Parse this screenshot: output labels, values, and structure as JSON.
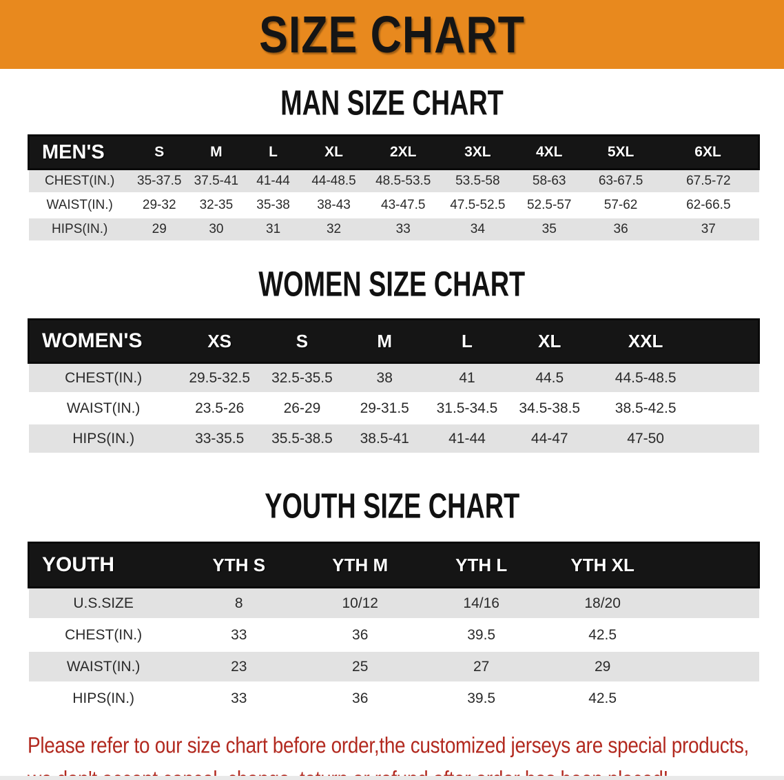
{
  "banner": {
    "title": "SIZE CHART"
  },
  "colors": {
    "banner_bg": "#e8891e",
    "header_bar": "#151515",
    "row_gray": "#e2e2e2",
    "footer_red": "#b2291f"
  },
  "sections": [
    {
      "heading": "MAN SIZE CHART",
      "header_label": "MEN'S",
      "columns": [
        "S",
        "M",
        "L",
        "XL",
        "2XL",
        "3XL",
        "4XL",
        "5XL",
        "6XL"
      ],
      "rows": [
        {
          "label": "CHEST(IN.)",
          "values": [
            "35-37.5",
            "37.5-41",
            "41-44",
            "44-48.5",
            "48.5-53.5",
            "53.5-58",
            "58-63",
            "63-67.5",
            "67.5-72"
          ]
        },
        {
          "label": "WAIST(IN.)",
          "values": [
            "29-32",
            "32-35",
            "35-38",
            "38-43",
            "43-47.5",
            "47.5-52.5",
            "52.5-57",
            "57-62",
            "62-66.5"
          ]
        },
        {
          "label": "HIPS(IN.)",
          "values": [
            "29",
            "30",
            "31",
            "32",
            "33",
            "34",
            "35",
            "36",
            "37"
          ]
        }
      ]
    },
    {
      "heading": "WOMEN SIZE CHART",
      "header_label": "WOMEN'S",
      "columns": [
        "XS",
        "S",
        "M",
        "L",
        "XL",
        "XXL"
      ],
      "rows": [
        {
          "label": "CHEST(IN.)",
          "values": [
            "29.5-32.5",
            "32.5-35.5",
            "38",
            "41",
            "44.5",
            "44.5-48.5"
          ]
        },
        {
          "label": "WAIST(IN.)",
          "values": [
            "23.5-26",
            "26-29",
            "29-31.5",
            "31.5-34.5",
            "34.5-38.5",
            "38.5-42.5"
          ]
        },
        {
          "label": "HIPS(IN.)",
          "values": [
            "33-35.5",
            "35.5-38.5",
            "38.5-41",
            "41-44",
            "44-47",
            "47-50"
          ]
        }
      ]
    },
    {
      "heading": "YOUTH SIZE CHART",
      "header_label": "YOUTH",
      "columns": [
        "YTH S",
        "YTH M",
        "YTH L",
        "YTH XL"
      ],
      "rows": [
        {
          "label": "U.S.SIZE",
          "values": [
            "8",
            "10/12",
            "14/16",
            "18/20"
          ]
        },
        {
          "label": "CHEST(IN.)",
          "values": [
            "33",
            "36",
            "39.5",
            "42.5"
          ]
        },
        {
          "label": "WAIST(IN.)",
          "values": [
            "23",
            "25",
            "27",
            "29"
          ]
        },
        {
          "label": "HIPS(IN.)",
          "values": [
            "33",
            "36",
            "39.5",
            "42.5"
          ]
        }
      ]
    }
  ],
  "footer": {
    "line1": "Please refer to our size chart before order,the customized jerseys are special products,",
    "line2": "we don't accept cancel, change, teturn or refund after order has been placed!"
  }
}
